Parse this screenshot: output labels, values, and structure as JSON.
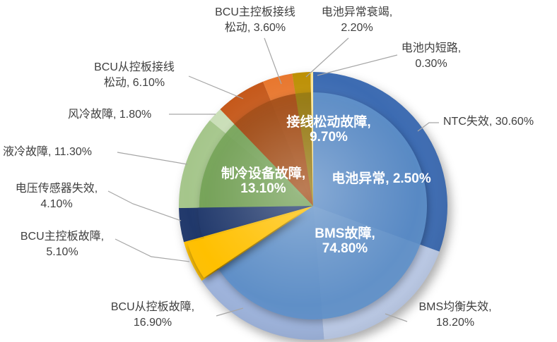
{
  "chart_data": {
    "type": "pie",
    "variant": "two-level-overlay-pie",
    "title": "",
    "unit": "%",
    "background": "#FFFFFF",
    "legend": "none",
    "leader_line_color": "#A6A6A6",
    "outer_label_color": "#3F3F3F",
    "inner_label_color": "#FFFFFF",
    "outer_series": {
      "name": "故障细分",
      "start_angle_deg": 0,
      "direction": "clockwise",
      "items": [
        {
          "id": "ntc",
          "label": "NTC失效",
          "value": 30.6,
          "color": "#3C6BB2",
          "label_lines": [
            "NTC失效, 30.60%"
          ]
        },
        {
          "id": "bms-balance",
          "label": "BMS均衡失效",
          "value": 18.2,
          "color": "#BECDEA",
          "label_lines": [
            "BMS均衡失效,",
            "18.20%"
          ]
        },
        {
          "id": "bcu-slave-fault",
          "label": "BCU从控板故障",
          "value": 16.9,
          "color": "#9DB3DC",
          "label_lines": [
            "BCU从控板故障,",
            "16.90%"
          ]
        },
        {
          "id": "bcu-master-fault",
          "label": "BCU主控板故障",
          "value": 5.1,
          "color": "#FFC000",
          "label_lines": [
            "BCU主控板故障,",
            "5.10%"
          ],
          "exploded": true
        },
        {
          "id": "voltage-sensor",
          "label": "电压传感器失效",
          "value": 4.1,
          "color": "#20386B",
          "label_lines": [
            "电压传感器失效,",
            "4.10%"
          ],
          "on_top": true
        },
        {
          "id": "liquid-cooling",
          "label": "液冷故障",
          "value": 11.3,
          "color": "#A5C68B",
          "label_lines": [
            "液冷故障, 11.30%"
          ]
        },
        {
          "id": "air-cooling",
          "label": "风冷故障",
          "value": 1.8,
          "color": "#C9DEB7",
          "label_lines": [
            "风冷故障, 1.80%"
          ]
        },
        {
          "id": "bcu-slave-wire",
          "label": "BCU从控板接线松动",
          "value": 6.1,
          "color": "#C5581A",
          "label_lines": [
            "BCU从控板接线",
            "松动, 6.10%"
          ]
        },
        {
          "id": "bcu-master-wire",
          "label": "BCU主控板接线松动",
          "value": 3.6,
          "color": "#E8772E",
          "label_lines": [
            "BCU主控板接线",
            "松动, 3.60%"
          ]
        },
        {
          "id": "battery-decay",
          "label": "电池异常衰竭",
          "value": 2.2,
          "color": "#BD9005",
          "label_lines": [
            "电池异常衰竭,",
            "2.20%"
          ]
        },
        {
          "id": "battery-short",
          "label": "电池内短路",
          "value": 0.3,
          "color": "#FFE699",
          "label_lines": [
            "电池内短路,",
            "0.30%"
          ],
          "on_top": true
        }
      ]
    },
    "inner_series": {
      "name": "故障大类",
      "start_angle_deg": 0,
      "direction": "clockwise",
      "items": [
        {
          "id": "bms",
          "label": "BMS故障",
          "value": 74.8,
          "color": "#5D90CB",
          "label_lines": [
            "BMS故障,",
            "74.80%"
          ]
        },
        {
          "id": "cooling",
          "label": "制冷设备故障",
          "value": 13.1,
          "color": "#6FA050",
          "label_lines": [
            "制冷设备故障,",
            "13.10%"
          ]
        },
        {
          "id": "wiring",
          "label": "接线松动故障",
          "value": 9.7,
          "color": "#9F460D",
          "label_lines": [
            "接线松动故障,",
            "9.70%"
          ]
        },
        {
          "id": "battery",
          "label": "电池异常",
          "value": 2.5,
          "color": "#92760A",
          "label_lines": [
            "电池异常, 2.50%"
          ]
        }
      ]
    }
  }
}
